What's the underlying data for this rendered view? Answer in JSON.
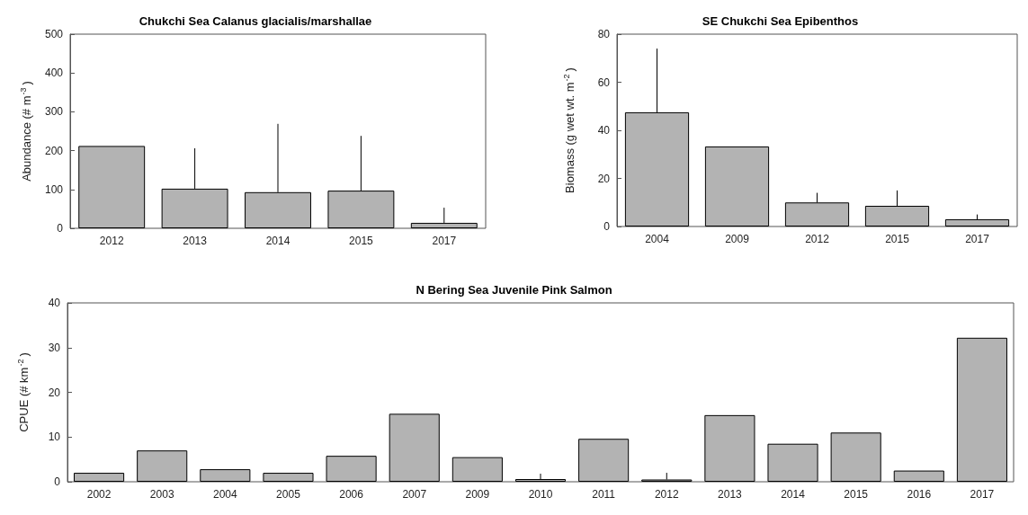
{
  "chart_data": [
    {
      "type": "bar",
      "title": "Chukchi Sea Calanus glacialis/marshallae",
      "ylabel": "Abundance (# m$^{-3}$)",
      "categories": [
        "2012",
        "2013",
        "2014",
        "2015",
        "2017"
      ],
      "values": [
        212,
        102,
        93,
        97,
        14
      ],
      "errors": [
        null,
        [
          102,
          206
        ],
        [
          93,
          269
        ],
        [
          97,
          238
        ],
        [
          14,
          53
        ]
      ],
      "color": "#b3b3b3",
      "ylim": [
        0,
        500
      ],
      "yticks": [
        0,
        100,
        200,
        300,
        400,
        500
      ],
      "grid": false
    },
    {
      "type": "bar",
      "title": "SE Chukchi Sea Epibenthos",
      "ylabel": "Biomass (g wet wt. m$^{-2}$)",
      "categories": [
        "2004",
        "2009",
        "2012",
        "2015",
        "2017"
      ],
      "values": [
        47.5,
        33.3,
        10,
        8.6,
        3
      ],
      "errors": [
        [
          47.5,
          74
        ],
        null,
        [
          10,
          14
        ],
        [
          8.6,
          15
        ],
        [
          3,
          5
        ]
      ],
      "color": "#b3b3b3",
      "ylim": [
        0,
        80
      ],
      "yticks": [
        0,
        20,
        40,
        60,
        80
      ],
      "grid": false
    },
    {
      "type": "bar",
      "title": "N Bering Sea Juvenile Pink Salmon",
      "ylabel": "CPUE (# km$^{-2}$)",
      "categories": [
        "2002",
        "2003",
        "2004",
        "2005",
        "2006",
        "2007",
        "2009",
        "2010",
        "2011",
        "2012",
        "2013",
        "2014",
        "2015",
        "2016",
        "2017"
      ],
      "values": [
        2,
        7,
        2.8,
        2,
        5.8,
        15.2,
        5.5,
        0.6,
        9.6,
        0.5,
        14.9,
        8.5,
        11,
        2.5,
        32.2
      ],
      "errors": [
        null,
        null,
        null,
        null,
        null,
        null,
        null,
        [
          0.6,
          1.8
        ],
        null,
        [
          0.5,
          2
        ],
        null,
        null,
        null,
        null,
        null
      ],
      "color": "#b3b3b3",
      "ylim": [
        0,
        40
      ],
      "yticks": [
        0,
        10,
        20,
        30,
        40
      ],
      "grid": false
    }
  ]
}
